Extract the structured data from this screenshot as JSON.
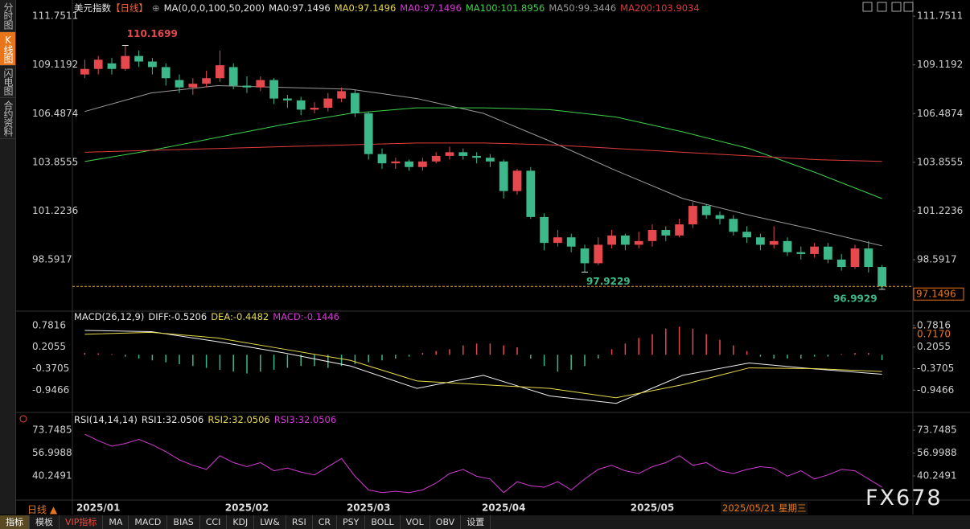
{
  "ui": {
    "side_tabs": [
      "分时图",
      "K线图",
      "闪电图",
      "合约资料"
    ],
    "period": "日线",
    "cursor_date": "2025/05/21 星期三",
    "watermark": "FX678",
    "toolbar": [
      "指标",
      "模板",
      "VIP指标",
      "MA",
      "MACD",
      "BIAS",
      "CCI",
      "KDJ",
      "LW&",
      "RSI",
      "CR",
      "PSY",
      "BOLL",
      "VOL",
      "OBV",
      "设置"
    ]
  },
  "chart_data": [
    {
      "type": "candlestick",
      "title": "美元指数",
      "period_tag": "【日线】",
      "params": "MA(0,0,0,100,50,200)",
      "legend": [
        {
          "text": "MA0:97.1496",
          "color": "#e6e6e6"
        },
        {
          "text": "MA0:97.1496",
          "color": "#e8d94a"
        },
        {
          "text": "MA0:97.1496",
          "color": "#d23ad2"
        },
        {
          "text": "MA100:101.8956",
          "color": "#3fd14a"
        },
        {
          "text": "MA50:99.3446",
          "color": "#9a9a9a"
        },
        {
          "text": "MA200:103.9034",
          "color": "#e03c3c"
        }
      ],
      "categories": [
        null,
        "2025/01",
        null,
        null,
        null,
        null,
        null,
        null,
        null,
        null,
        null,
        null,
        "2025/02",
        null,
        null,
        null,
        null,
        null,
        null,
        null,
        null,
        "2025/03",
        null,
        null,
        null,
        null,
        null,
        null,
        null,
        null,
        null,
        "2025/04",
        null,
        null,
        null,
        null,
        null,
        null,
        null,
        null,
        null,
        null,
        "2025/05",
        null,
        null,
        null,
        null,
        null,
        null,
        null,
        null,
        null,
        null,
        null,
        null,
        null,
        null,
        null,
        null,
        null
      ],
      "open": [
        108.6,
        108.9,
        109.2,
        108.9,
        109.6,
        109.3,
        109.0,
        108.3,
        107.9,
        108.1,
        108.4,
        109.0,
        108.0,
        107.9,
        108.3,
        107.3,
        107.2,
        106.7,
        106.8,
        107.3,
        107.6,
        106.5,
        104.3,
        103.8,
        103.9,
        103.6,
        103.9,
        104.2,
        104.4,
        104.2,
        104.1,
        103.9,
        102.3,
        103.4,
        100.9,
        99.5,
        99.8,
        99.2,
        98.4,
        99.4,
        99.9,
        99.4,
        99.6,
        100.2,
        99.9,
        100.5,
        101.5,
        101.0,
        100.8,
        100.1,
        99.8,
        99.4,
        99.6,
        99.0,
        98.9,
        99.3,
        98.6,
        98.2,
        99.2,
        98.2
      ],
      "close": [
        108.9,
        109.4,
        108.9,
        109.6,
        109.3,
        109.0,
        108.4,
        107.9,
        108.1,
        108.4,
        109.1,
        108.0,
        107.9,
        108.3,
        107.3,
        107.2,
        106.7,
        106.8,
        107.3,
        107.7,
        106.5,
        104.3,
        103.8,
        103.9,
        103.6,
        103.9,
        104.2,
        104.4,
        104.2,
        104.1,
        103.9,
        102.3,
        103.4,
        100.9,
        99.5,
        99.8,
        99.3,
        98.4,
        99.4,
        99.9,
        99.4,
        99.6,
        100.2,
        99.9,
        100.5,
        101.5,
        101.0,
        100.8,
        100.1,
        99.8,
        99.4,
        99.6,
        99.0,
        98.9,
        99.3,
        98.6,
        98.2,
        99.2,
        98.2,
        97.1496
      ],
      "high": [
        109.4,
        109.6,
        109.5,
        110.1699,
        109.9,
        109.5,
        109.2,
        108.6,
        108.4,
        108.8,
        109.9,
        109.2,
        108.5,
        108.5,
        108.4,
        107.5,
        107.4,
        107.1,
        107.6,
        107.9,
        107.8,
        106.6,
        104.6,
        104.1,
        104.0,
        104.1,
        104.4,
        104.7,
        104.6,
        104.4,
        104.3,
        104.0,
        103.5,
        103.6,
        101.1,
        100.2,
        100.0,
        99.4,
        99.8,
        100.2,
        100.0,
        100.1,
        100.5,
        100.4,
        100.8,
        101.7,
        101.6,
        101.2,
        101.0,
        100.4,
        100.0,
        100.4,
        99.8,
        99.3,
        99.5,
        99.5,
        98.9,
        99.4,
        99.6,
        98.3
      ],
      "low": [
        108.4,
        108.6,
        108.6,
        108.8,
        109.0,
        108.6,
        108.0,
        107.6,
        107.5,
        107.9,
        108.2,
        107.8,
        107.6,
        107.7,
        107.0,
        106.8,
        106.4,
        106.5,
        106.6,
        107.1,
        106.3,
        104.0,
        103.5,
        103.5,
        103.4,
        103.4,
        103.8,
        104.0,
        104.0,
        103.8,
        103.6,
        101.9,
        102.1,
        100.8,
        99.1,
        99.3,
        99.0,
        97.9229,
        98.3,
        99.2,
        99.1,
        99.2,
        99.3,
        99.6,
        99.8,
        100.3,
        100.8,
        100.5,
        99.9,
        99.5,
        99.1,
        99.2,
        98.8,
        98.6,
        98.7,
        98.4,
        98.0,
        98.1,
        97.9,
        96.9929
      ],
      "up_color": "#e5484d",
      "down_color": "#3db88a",
      "ma_lines": [
        {
          "name": "MA50",
          "color": "#9a9a9a",
          "values": [
            106.6,
            107.6,
            108.0,
            107.9,
            107.8,
            107.3,
            106.5,
            105.0,
            103.4,
            101.9,
            101.0,
            100.2,
            99.3446
          ]
        },
        {
          "name": "MA100",
          "color": "#3fd14a",
          "values": [
            103.9,
            104.5,
            105.2,
            105.9,
            106.5,
            106.8,
            106.8,
            106.7,
            106.3,
            105.5,
            104.6,
            103.3,
            101.8956
          ]
        },
        {
          "name": "MA200",
          "color": "#e03c3c",
          "values": [
            104.4,
            104.5,
            104.6,
            104.7,
            104.8,
            104.9,
            104.9,
            104.8,
            104.6,
            104.4,
            104.2,
            104.0,
            103.9034
          ]
        }
      ],
      "last_price": 97.1496,
      "ylim": [
        95.9,
        112.19
      ],
      "yticks": [
        98.5917,
        101.2236,
        103.8555,
        106.4874,
        109.1192,
        111.7511
      ]
    },
    {
      "type": "macd",
      "title": "MACD(26,12,9)",
      "legend": [
        {
          "text": "DIFF:-0.5206",
          "color": "#e6e6e6"
        },
        {
          "text": "DEA:-0.4482",
          "color": "#e8d94a"
        },
        {
          "text": "MACD:-0.1446",
          "color": "#d23ad2"
        }
      ],
      "histogram": {
        "up_color": "#e5484d",
        "down_color": "#3db88a",
        "values": [
          0.05,
          0.04,
          0.02,
          -0.05,
          -0.1,
          -0.15,
          -0.2,
          -0.25,
          -0.3,
          -0.35,
          -0.4,
          -0.45,
          -0.5,
          -0.45,
          -0.4,
          -0.35,
          -0.3,
          -0.3,
          -0.35,
          -0.3,
          -0.25,
          -0.2,
          -0.15,
          -0.1,
          -0.05,
          0.05,
          0.1,
          0.15,
          0.25,
          0.3,
          0.3,
          0.25,
          0.2,
          -0.1,
          -0.3,
          -0.45,
          -0.4,
          -0.3,
          -0.1,
          0.15,
          0.3,
          0.45,
          0.55,
          0.7,
          0.75,
          0.7,
          0.55,
          0.4,
          0.25,
          0.1,
          -0.05,
          -0.1,
          -0.1,
          -0.1,
          -0.05,
          -0.05,
          0.02,
          0.05,
          0.05,
          -0.1446
        ]
      },
      "series": [
        {
          "name": "DIFF",
          "color": "#f0f0f0",
          "values": [
            0.65,
            0.62,
            0.35,
            0.05,
            -0.3,
            -0.9,
            -0.55,
            -1.1,
            -1.3,
            -0.55,
            -0.22,
            -0.38,
            -0.5206
          ]
        },
        {
          "name": "DEA",
          "color": "#e8d94a",
          "values": [
            0.55,
            0.6,
            0.45,
            0.15,
            -0.15,
            -0.7,
            -0.8,
            -0.9,
            -1.15,
            -0.8,
            -0.35,
            -0.37,
            -0.4482
          ]
        }
      ],
      "marker": {
        "value": 0.717,
        "label": "0.7170"
      },
      "ylim": [
        -1.52,
        0.995
      ],
      "yticks": [
        -0.9466,
        -0.3705,
        0.2055,
        0.7816
      ]
    },
    {
      "type": "rsi",
      "title": "RSI(14,14,14)",
      "legend": [
        {
          "text": "RSI1:32.0506",
          "color": "#e6e6e6"
        },
        {
          "text": "RSI2:32.0506",
          "color": "#e8d94a"
        },
        {
          "text": "RSI3:32.0506",
          "color": "#d23ad2"
        }
      ],
      "series": [
        {
          "name": "RSI",
          "color": "#d23ad2",
          "values": [
            70.8,
            66,
            62,
            64,
            67,
            63,
            58,
            52,
            48,
            45,
            55,
            50,
            47,
            50,
            44,
            46,
            43,
            41,
            47,
            53,
            40,
            30,
            28,
            29,
            28,
            30,
            35,
            42,
            45,
            40,
            38,
            28,
            36,
            33,
            32,
            36,
            30,
            38,
            45,
            48,
            44,
            42,
            47,
            50,
            55,
            48,
            50,
            44,
            42,
            45,
            47,
            46,
            40,
            44,
            38,
            41,
            45,
            44,
            38,
            32.0506
          ]
        }
      ],
      "ylim": [
        20.8,
        82.6
      ],
      "yticks": [
        40.2491,
        56.9988,
        73.7485
      ]
    }
  ]
}
